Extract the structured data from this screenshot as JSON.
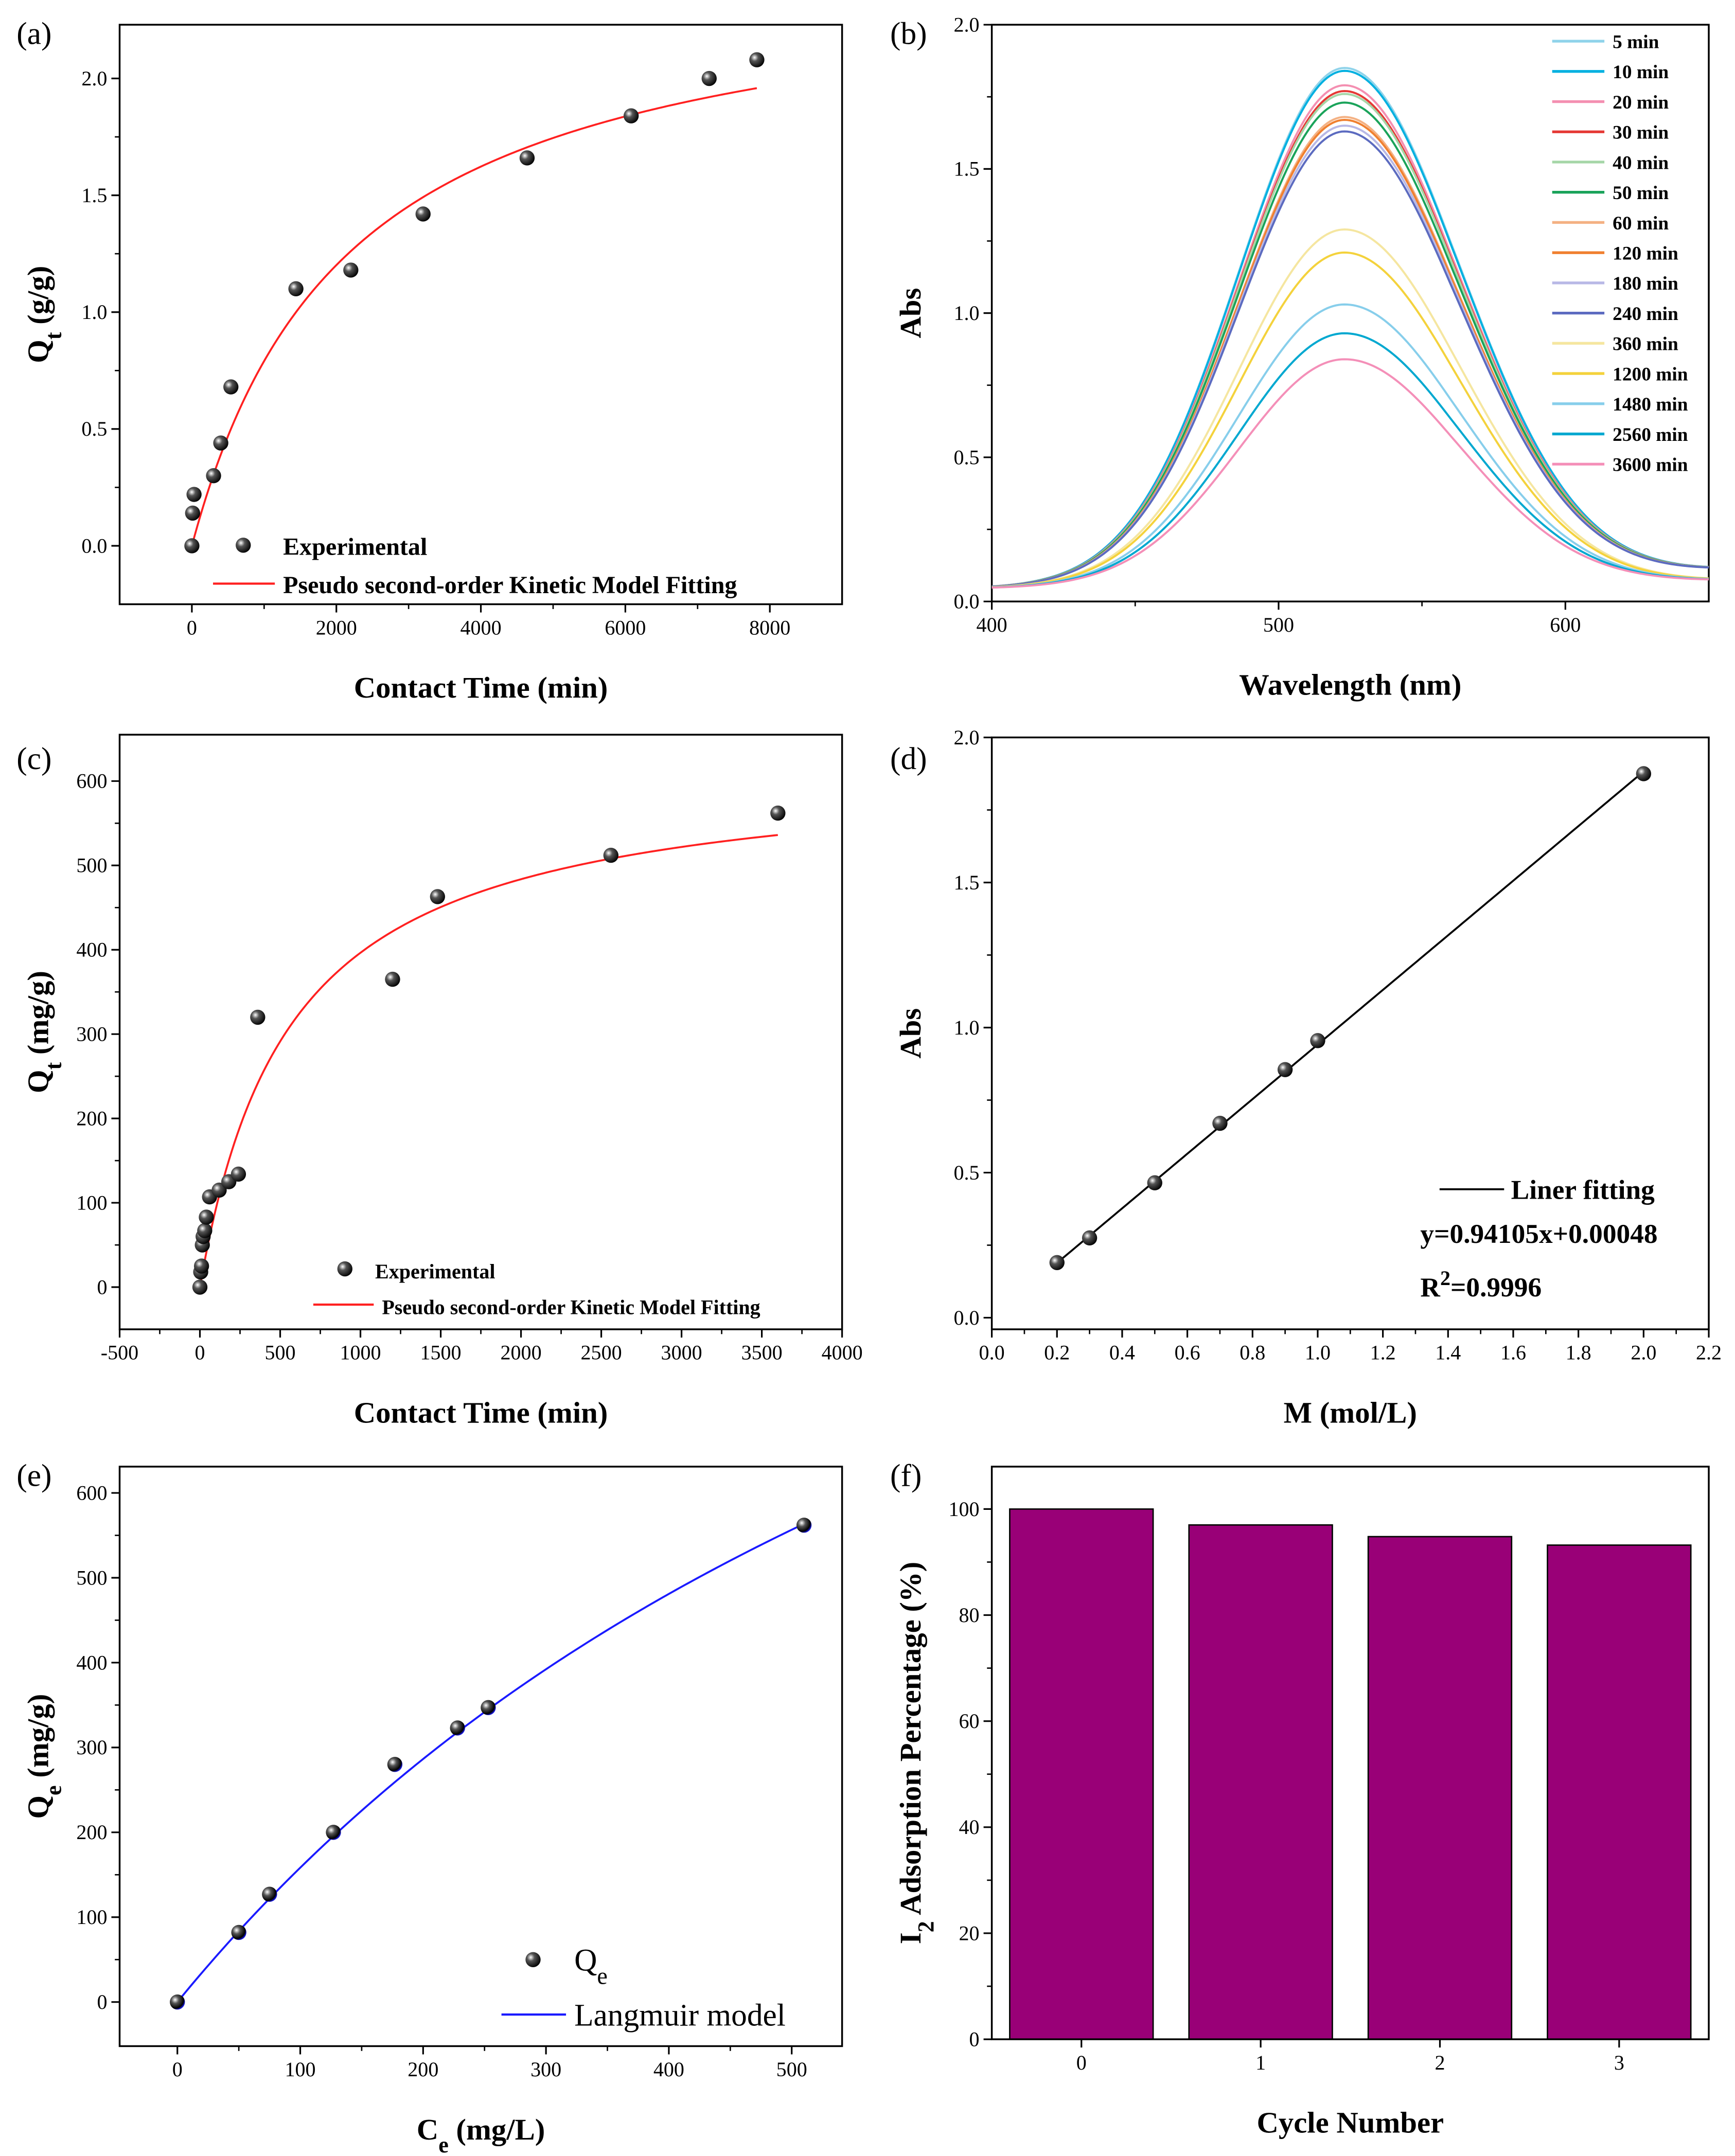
{
  "chart_data": [
    {
      "panel": "(a)",
      "type": "scatter",
      "xlabel": {
        "main": "Contact Time (min)"
      },
      "ylabel": {
        "main": "Q",
        "sub": "t",
        "rest": " (g/g)"
      },
      "xlim": [
        -1000,
        9000
      ],
      "ylim": [
        -0.25,
        2.23
      ],
      "xticks": [
        "0",
        "2000",
        "4000",
        "6000",
        "8000"
      ],
      "yticks": [
        "0.0",
        "0.5",
        "1.0",
        "1.5",
        "2.0"
      ],
      "points": {
        "name": "Experimental",
        "x": [
          0,
          10,
          30,
          300,
          400,
          540,
          1440,
          2200,
          3200,
          4640,
          6080,
          7160,
          7820
        ],
        "y": [
          0,
          0.14,
          0.22,
          0.3,
          0.44,
          0.68,
          1.1,
          1.18,
          1.42,
          1.66,
          1.84,
          2.0,
          2.08
        ]
      },
      "fit": {
        "name": "Pseudo second-order Kinetic Model Fitting",
        "model": "pseudo-second-order",
        "qe": 2.5,
        "k": 0.000185,
        "range": [
          0,
          7820
        ],
        "color": "#ff2020"
      }
    },
    {
      "panel": "(b)",
      "type": "line",
      "xlabel": {
        "main": "Wavelength (nm)"
      },
      "ylabel": {
        "main": "Abs"
      },
      "xlim": [
        400,
        650
      ],
      "ylim": [
        0,
        2.0
      ],
      "xticks": [
        "400",
        "500",
        "600"
      ],
      "yticks": [
        "0.0",
        "0.5",
        "1.0",
        "1.5",
        "2.0"
      ],
      "peak_wavelength": 523,
      "series": [
        {
          "name": "5 min",
          "peak": 1.85,
          "color": "#8fd3ea"
        },
        {
          "name": "10 min",
          "peak": 1.84,
          "color": "#00b0e0"
        },
        {
          "name": "20 min",
          "peak": 1.79,
          "color": "#f48fb1"
        },
        {
          "name": "30 min",
          "peak": 1.77,
          "color": "#e53935"
        },
        {
          "name": "40 min",
          "peak": 1.76,
          "color": "#a5d6a7"
        },
        {
          "name": "50 min",
          "peak": 1.73,
          "color": "#1aa35a"
        },
        {
          "name": "60 min",
          "peak": 1.68,
          "color": "#f4b183"
        },
        {
          "name": "120 min",
          "peak": 1.67,
          "color": "#f08030"
        },
        {
          "name": "180 min",
          "peak": 1.65,
          "color": "#b8b8e6"
        },
        {
          "name": "240 min",
          "peak": 1.63,
          "color": "#5c6bc0"
        },
        {
          "name": "360 min",
          "peak": 1.29,
          "color": "#f5e6a0"
        },
        {
          "name": "1200 min",
          "peak": 1.21,
          "color": "#f4d23c"
        },
        {
          "name": "1480 min",
          "peak": 1.03,
          "color": "#87ceeb"
        },
        {
          "name": "2560 min",
          "peak": 0.93,
          "color": "#00a8d0"
        },
        {
          "name": "3600 min",
          "peak": 0.84,
          "color": "#f48fb8"
        }
      ]
    },
    {
      "panel": "(c)",
      "type": "scatter",
      "xlabel": {
        "main": "Contact Time (min)"
      },
      "ylabel": {
        "main": "Q",
        "sub": "t",
        "rest": " (mg/g)"
      },
      "xlim": [
        -500,
        4000
      ],
      "ylim": [
        -50,
        655
      ],
      "xticks": [
        "-500",
        "0",
        "500",
        "1000",
        "1500",
        "2000",
        "2500",
        "3000",
        "3500",
        "4000"
      ],
      "yticks": [
        "0",
        "100",
        "200",
        "300",
        "400",
        "500",
        "600"
      ],
      "points": {
        "name": "Experimental",
        "x": [
          0,
          5,
          10,
          15,
          20,
          30,
          40,
          60,
          120,
          180,
          240,
          360,
          1200,
          1480,
          2560,
          3600
        ],
        "y": [
          0,
          18,
          25,
          50,
          60,
          67,
          83,
          107,
          115,
          125,
          134,
          320,
          365,
          463,
          512,
          562
        ]
      },
      "fit": {
        "name": "Pseudo second-order Kinetic Model Fitting",
        "model": "pseudo-second-order",
        "qe": 620,
        "k": 2.86e-06,
        "range": [
          0,
          3600
        ],
        "color": "#ff2020"
      }
    },
    {
      "panel": "(d)",
      "type": "scatter",
      "xlabel": {
        "main": "M (mol/L)"
      },
      "ylabel": {
        "main": "Abs"
      },
      "xlim": [
        0,
        2.2
      ],
      "ylim": [
        -0.04,
        2.0
      ],
      "xticks": [
        "0.0",
        "0.2",
        "0.4",
        "0.6",
        "0.8",
        "1.0",
        "1.2",
        "1.4",
        "1.6",
        "1.8",
        "2.0",
        "2.2"
      ],
      "yticks": [
        "0.0",
        "0.5",
        "1.0",
        "1.5",
        "2.0"
      ],
      "points": {
        "name": "data",
        "x": [
          0.2,
          0.3,
          0.5,
          0.7,
          0.9,
          1.0,
          2.0
        ],
        "y": [
          0.19,
          0.275,
          0.465,
          0.67,
          0.855,
          0.955,
          1.875
        ]
      },
      "fit": {
        "name": "Liner fitting",
        "model": "linear",
        "slope": 0.94105,
        "intercept": 0.00048,
        "range": [
          0.2,
          2.0
        ],
        "color": "#000000"
      },
      "annotations": {
        "equation": "y=0.94105x+0.00048",
        "r2_main": "R",
        "r2_sup": "2",
        "r2_rest": "=0.9996"
      }
    },
    {
      "panel": "(e)",
      "type": "scatter",
      "xlabel": {
        "main": "C",
        "sub": "e",
        "rest": " (mg/L)"
      },
      "ylabel": {
        "main": "Q",
        "sub": "e",
        "rest": " (mg/g)"
      },
      "xlim": [
        -47,
        541
      ],
      "ylim": [
        -52,
        631
      ],
      "xticks": [
        "0",
        "100",
        "200",
        "300",
        "400",
        "500"
      ],
      "yticks": [
        "0",
        "100",
        "200",
        "300",
        "400",
        "500",
        "600"
      ],
      "points": {
        "name_main": "Q",
        "name_sub": "e",
        "x": [
          0,
          50,
          75,
          127,
          177,
          228,
          253,
          510
        ],
        "y": [
          0,
          82,
          127,
          200,
          280,
          323,
          347,
          562
        ]
      },
      "fit": {
        "name": "Langmuir model",
        "model": "langmuir",
        "qm": 1500,
        "KL": 0.00118,
        "range": [
          0,
          510
        ],
        "color": "#1a1aff"
      }
    },
    {
      "panel": "(f)",
      "type": "bar",
      "xlabel": {
        "main": "Cycle Number"
      },
      "ylabel": {
        "main": "I",
        "sub": "2",
        "rest": " Adsorption Percentage (%)"
      },
      "xlim": [
        -0.5,
        3.5
      ],
      "ylim": [
        0,
        108
      ],
      "xticks": [
        "0",
        "1",
        "2",
        "3"
      ],
      "yticks": [
        "0",
        "20",
        "40",
        "60",
        "80",
        "100"
      ],
      "categories": [
        0,
        1,
        2,
        3
      ],
      "values": [
        100,
        97,
        94.8,
        93.2
      ],
      "color": "#990077"
    }
  ]
}
